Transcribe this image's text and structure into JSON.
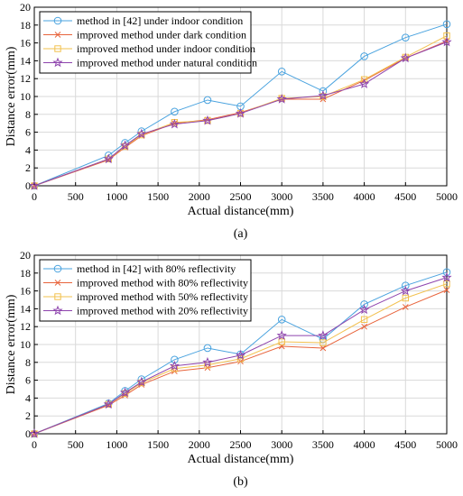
{
  "chart_data": [
    {
      "type": "line",
      "caption": "(a)",
      "xlabel": "Actual distance(mm)",
      "ylabel": "Distance error(mm)",
      "xlim": [
        0,
        5000
      ],
      "ylim": [
        0,
        20
      ],
      "xticks": [
        0,
        500,
        1000,
        1500,
        2000,
        2500,
        3000,
        3500,
        4000,
        4500,
        5000
      ],
      "yticks": [
        0,
        2,
        4,
        6,
        8,
        10,
        12,
        14,
        16,
        18,
        20
      ],
      "grid": true,
      "legend_position": "top-left",
      "x": [
        0,
        900,
        1100,
        1300,
        1700,
        2100,
        2500,
        3000,
        3500,
        4000,
        4500,
        5000
      ],
      "series": [
        {
          "name": "method in [42] under indoor condition",
          "color": "#4aa3df",
          "marker": "circle",
          "values": [
            0,
            3.4,
            4.8,
            6.1,
            8.3,
            9.6,
            8.9,
            12.8,
            10.6,
            14.5,
            16.6,
            18.1
          ]
        },
        {
          "name": "improved method under dark condition",
          "color": "#e8643c",
          "marker": "x",
          "values": [
            0,
            2.9,
            4.3,
            5.6,
            7.0,
            7.4,
            8.2,
            9.7,
            9.7,
            11.8,
            14.3,
            16.2
          ]
        },
        {
          "name": "improved method under indoor condition",
          "color": "#f2c14e",
          "marker": "square",
          "values": [
            0,
            3.0,
            4.4,
            5.7,
            7.1,
            7.3,
            8.1,
            9.8,
            10.0,
            11.9,
            14.4,
            16.8
          ]
        },
        {
          "name": "improved method under natural condition",
          "color": "#8e44ad",
          "marker": "star",
          "values": [
            0,
            3.0,
            4.5,
            5.8,
            6.9,
            7.3,
            8.1,
            9.7,
            10.1,
            11.4,
            14.3,
            16.1
          ]
        }
      ]
    },
    {
      "type": "line",
      "caption": "(b)",
      "xlabel": "Actual distance(mm)",
      "ylabel": "Distance error(mm)",
      "xlim": [
        0,
        5000
      ],
      "ylim": [
        0,
        20
      ],
      "xticks": [
        0,
        500,
        1000,
        1500,
        2000,
        2500,
        3000,
        3500,
        4000,
        4500,
        5000
      ],
      "yticks": [
        0,
        2,
        4,
        6,
        8,
        10,
        12,
        14,
        16,
        18,
        20
      ],
      "grid": true,
      "legend_position": "top-left",
      "x": [
        0,
        900,
        1100,
        1300,
        1700,
        2100,
        2500,
        3000,
        3500,
        4000,
        4500,
        5000
      ],
      "series": [
        {
          "name": "method in [42] with 80% reflectivity",
          "color": "#4aa3df",
          "marker": "circle",
          "values": [
            0,
            3.4,
            4.8,
            6.1,
            8.3,
            9.6,
            8.9,
            12.8,
            10.6,
            14.5,
            16.6,
            18.1
          ]
        },
        {
          "name": "improved method with 80% reflectivity",
          "color": "#e8643c",
          "marker": "x",
          "values": [
            0,
            3.2,
            4.3,
            5.5,
            7.0,
            7.4,
            8.1,
            9.8,
            9.6,
            12.0,
            14.2,
            16.1
          ]
        },
        {
          "name": "improved method with 50% reflectivity",
          "color": "#f2c14e",
          "marker": "square",
          "values": [
            0,
            3.3,
            4.5,
            5.7,
            7.3,
            7.7,
            8.4,
            10.3,
            10.2,
            12.8,
            15.2,
            16.8
          ]
        },
        {
          "name": "improved method with 20% reflectivity",
          "color": "#8e44ad",
          "marker": "star",
          "values": [
            0,
            3.3,
            4.6,
            5.8,
            7.6,
            8.0,
            8.8,
            11.0,
            11.0,
            13.9,
            16.0,
            17.5
          ]
        }
      ]
    }
  ]
}
